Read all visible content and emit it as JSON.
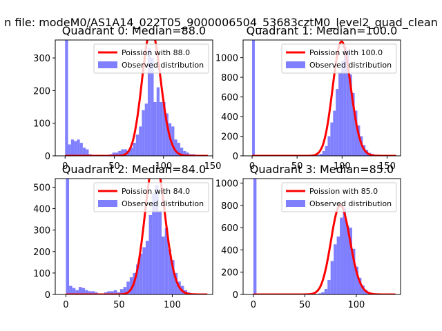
{
  "figure": {
    "suptitle": "n file: modeM0/AS1A14_022T05_9000006504_53683cztM0_level2_quad_clean"
  },
  "colors": {
    "poisson": "#ff0000",
    "observed": "#8080ff",
    "axis": "#000000"
  },
  "chart_data": [
    {
      "type": "histogram",
      "title": "Quadrant 0: Median=88.0",
      "median": 88.0,
      "xlim": [
        -10,
        150
      ],
      "ylim": [
        0,
        355
      ],
      "xticks": [
        "0",
        "50",
        "100",
        "150"
      ],
      "xtick_values": [
        0,
        50,
        100,
        150
      ],
      "yticks": [
        "0",
        "100",
        "200",
        "300"
      ],
      "ytick_values": [
        0,
        100,
        200,
        300
      ],
      "bin_width": 3,
      "bin_starts": [
        0,
        3,
        6,
        9,
        12,
        15,
        18,
        21,
        24,
        27,
        30,
        33,
        36,
        39,
        42,
        45,
        48,
        51,
        54,
        57,
        60,
        63,
        66,
        69,
        72,
        75,
        78,
        81,
        84,
        87,
        90,
        93,
        96,
        99,
        102,
        105,
        108,
        111,
        114,
        117,
        120,
        123,
        126,
        129,
        132,
        135
      ],
      "counts": [
        355,
        35,
        50,
        45,
        50,
        40,
        25,
        20,
        5,
        0,
        0,
        0,
        0,
        0,
        0,
        5,
        10,
        10,
        15,
        20,
        20,
        15,
        25,
        40,
        65,
        90,
        140,
        160,
        330,
        300,
        165,
        210,
        165,
        165,
        130,
        100,
        90,
        50,
        40,
        25,
        15,
        10,
        5,
        5,
        0,
        0
      ],
      "poisson_label": "Poission with 88.0",
      "observed_label": "Observed distribution",
      "legend_loc": "upper right"
    },
    {
      "type": "histogram",
      "title": "Quadrant 1: Median=100.0",
      "median": 100.0,
      "xlim": [
        -10,
        165
      ],
      "ylim": [
        0,
        1180
      ],
      "xticks": [
        "0",
        "50",
        "100",
        "150"
      ],
      "xtick_values": [
        0,
        50,
        100,
        150
      ],
      "yticks": [
        "0",
        "200",
        "400",
        "600",
        "800",
        "1000"
      ],
      "ytick_values": [
        0,
        200,
        400,
        600,
        800,
        1000
      ],
      "bin_width": 3,
      "bin_starts": [
        0,
        3,
        6,
        9,
        12,
        15,
        18,
        21,
        24,
        27,
        30,
        33,
        36,
        39,
        42,
        45,
        48,
        51,
        54,
        57,
        60,
        63,
        66,
        69,
        72,
        75,
        78,
        81,
        84,
        87,
        90,
        93,
        96,
        99,
        102,
        105,
        108,
        111,
        114,
        117,
        120,
        123,
        126,
        129,
        132,
        135,
        138,
        141,
        144,
        147,
        150,
        153
      ],
      "counts": [
        1180,
        0,
        0,
        0,
        0,
        0,
        0,
        0,
        0,
        0,
        0,
        0,
        0,
        0,
        0,
        0,
        0,
        0,
        0,
        0,
        0,
        0,
        0,
        0,
        10,
        20,
        50,
        100,
        200,
        340,
        460,
        680,
        850,
        970,
        1110,
        1080,
        830,
        640,
        460,
        310,
        200,
        110,
        60,
        30,
        20,
        10,
        5,
        0,
        0,
        0,
        0,
        0
      ],
      "poisson_label": "Poission with 100.0",
      "observed_label": "Observed distribution",
      "legend_loc": "upper right"
    },
    {
      "type": "histogram",
      "title": "Quadrant 2: Median=84.0",
      "median": 84.0,
      "xlim": [
        -10,
        138
      ],
      "ylim": [
        0,
        540
      ],
      "xticks": [
        "0",
        "50",
        "100"
      ],
      "xtick_values": [
        0,
        50,
        100
      ],
      "yticks": [
        "0",
        "100",
        "200",
        "300",
        "400",
        "500"
      ],
      "ytick_values": [
        0,
        100,
        200,
        300,
        400,
        500
      ],
      "bin_width": 3,
      "bin_starts": [
        0,
        3,
        6,
        9,
        12,
        15,
        18,
        21,
        24,
        27,
        30,
        33,
        36,
        39,
        42,
        45,
        48,
        51,
        54,
        57,
        60,
        63,
        66,
        69,
        72,
        75,
        78,
        81,
        84,
        87,
        90,
        93,
        96,
        99,
        102,
        105,
        108,
        111,
        114,
        117,
        120,
        123,
        126
      ],
      "counts": [
        540,
        40,
        30,
        20,
        35,
        30,
        20,
        15,
        15,
        10,
        5,
        5,
        10,
        15,
        15,
        20,
        10,
        25,
        35,
        60,
        80,
        100,
        140,
        190,
        220,
        250,
        370,
        470,
        510,
        390,
        270,
        310,
        210,
        160,
        100,
        60,
        40,
        20,
        10,
        5,
        0,
        0,
        0
      ],
      "poisson_label": "Poission with 84.0",
      "observed_label": "Observed distribution",
      "legend_loc": "upper right"
    },
    {
      "type": "histogram",
      "title": "Quadrant 3: Median=85.0",
      "median": 85.0,
      "xlim": [
        -10,
        143
      ],
      "ylim": [
        0,
        1040
      ],
      "xticks": [
        "0",
        "50",
        "100"
      ],
      "xtick_values": [
        0,
        50,
        100
      ],
      "yticks": [
        "0",
        "200",
        "400",
        "600",
        "800",
        "1000"
      ],
      "ytick_values": [
        0,
        200,
        400,
        600,
        800,
        1000
      ],
      "bin_width": 3,
      "bin_starts": [
        0,
        3,
        6,
        9,
        12,
        15,
        18,
        21,
        24,
        27,
        30,
        33,
        36,
        39,
        42,
        45,
        48,
        51,
        54,
        57,
        60,
        63,
        66,
        69,
        72,
        75,
        78,
        81,
        84,
        87,
        90,
        93,
        96,
        99,
        102,
        105,
        108,
        111,
        114,
        117,
        120,
        123,
        126,
        129,
        132
      ],
      "counts": [
        1040,
        0,
        0,
        0,
        0,
        0,
        0,
        0,
        0,
        0,
        0,
        0,
        0,
        0,
        0,
        0,
        0,
        0,
        0,
        0,
        5,
        10,
        20,
        50,
        130,
        300,
        450,
        520,
        690,
        780,
        620,
        600,
        410,
        250,
        150,
        80,
        40,
        20,
        10,
        5,
        0,
        0,
        0,
        0,
        0
      ],
      "poisson_label": "Poission with 85.0",
      "observed_label": "Observed distribution",
      "legend_loc": "upper right"
    }
  ]
}
